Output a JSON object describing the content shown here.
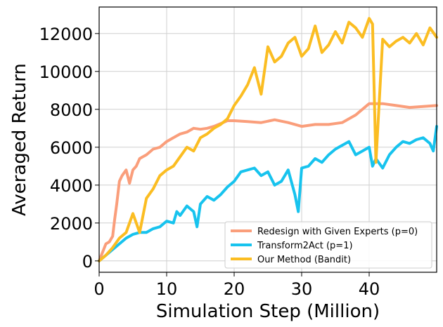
{
  "chart_data": {
    "type": "line",
    "xlabel": "Simulation Step (Million)",
    "ylabel": "Averaged Return",
    "xlim": [
      0,
      50
    ],
    "ylim": [
      -600,
      13400
    ],
    "x_ticks": [
      0,
      10,
      20,
      30,
      40
    ],
    "y_ticks": [
      0,
      2000,
      4000,
      6000,
      8000,
      10000,
      12000
    ],
    "grid": true,
    "legend_position": "bottom-right",
    "series": [
      {
        "name": "Redesign with Given Experts (p=0)",
        "color": "#fa9e7b",
        "x": [
          0,
          1,
          1.5,
          2,
          2.3,
          2.6,
          3,
          3.4,
          4,
          4.5,
          5,
          5.5,
          6,
          6.5,
          7,
          8,
          9,
          10,
          11,
          12,
          13,
          14,
          15,
          16,
          17,
          18,
          19,
          20,
          22,
          24,
          26,
          28,
          30,
          32,
          34,
          36,
          38,
          40,
          42,
          44,
          46,
          48,
          50
        ],
        "y": [
          0,
          900,
          1000,
          1300,
          2200,
          3000,
          4200,
          4500,
          4800,
          4100,
          4800,
          5000,
          5400,
          5500,
          5600,
          5900,
          6000,
          6300,
          6500,
          6700,
          6800,
          7000,
          6950,
          7000,
          7100,
          7250,
          7400,
          7400,
          7350,
          7300,
          7450,
          7300,
          7100,
          7200,
          7200,
          7300,
          7700,
          8300,
          8300,
          8200,
          8100,
          8150,
          8200
        ]
      },
      {
        "name": "Transform2Act (p=1)",
        "color": "#17c3ee",
        "x": [
          0,
          1,
          2,
          3,
          4,
          5,
          6,
          7,
          8,
          9,
          10,
          11,
          11.5,
          12,
          13,
          14,
          14.5,
          15,
          16,
          17,
          18,
          19,
          20,
          21,
          22,
          23,
          24,
          25,
          26,
          27,
          28,
          29,
          29.5,
          30,
          31,
          32,
          33,
          34,
          35,
          36,
          37,
          38,
          39,
          40,
          40.5,
          41,
          42,
          43,
          44,
          45,
          46,
          47,
          48,
          49,
          49.5,
          50
        ],
        "y": [
          0,
          300,
          600,
          900,
          1200,
          1400,
          1500,
          1500,
          1700,
          1800,
          2100,
          2000,
          2600,
          2400,
          2900,
          2600,
          1800,
          3000,
          3400,
          3200,
          3500,
          3900,
          4200,
          4700,
          4800,
          4900,
          4500,
          4700,
          4000,
          4200,
          4800,
          3500,
          2600,
          4900,
          5000,
          5400,
          5200,
          5600,
          5900,
          6100,
          6300,
          5600,
          5800,
          6000,
          5000,
          5400,
          4900,
          5600,
          6000,
          6300,
          6200,
          6400,
          6500,
          6200,
          5800,
          7100
        ]
      },
      {
        "name": "Our Method (Bandit)",
        "color": "#fbbd22",
        "x": [
          0,
          1,
          2,
          3,
          4,
          5,
          6,
          7,
          8,
          9,
          10,
          11,
          12,
          13,
          14,
          15,
          16,
          17,
          18,
          19,
          20,
          21,
          22,
          23,
          24,
          25,
          26,
          27,
          28,
          29,
          30,
          31,
          32,
          33,
          34,
          35,
          36,
          37,
          38,
          39,
          40,
          40.5,
          41,
          42,
          43,
          44,
          45,
          46,
          47,
          48,
          49,
          50
        ],
        "y": [
          0,
          300,
          700,
          1200,
          1500,
          2500,
          1500,
          3300,
          3800,
          4500,
          4800,
          5000,
          5500,
          6000,
          5800,
          6500,
          6700,
          7000,
          7200,
          7500,
          8200,
          8700,
          9300,
          10200,
          8800,
          11300,
          10500,
          10800,
          11500,
          11800,
          10800,
          11200,
          12400,
          11000,
          11400,
          12100,
          11500,
          12600,
          12300,
          11800,
          12800,
          12500,
          5200,
          11700,
          11300,
          11600,
          11800,
          11500,
          12000,
          11400,
          12300,
          11800
        ]
      }
    ]
  }
}
